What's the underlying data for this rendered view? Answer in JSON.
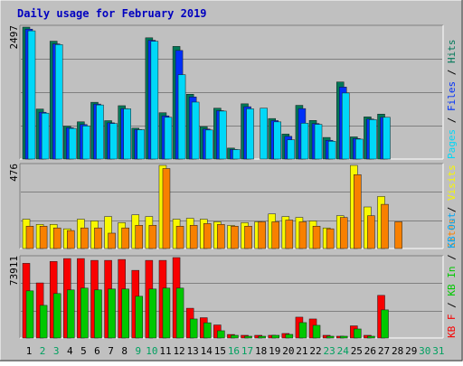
{
  "title": "Daily usage for February 2019",
  "colors": {
    "background": "#c0c0c0",
    "title": "#0000c0",
    "grid": "#808080",
    "hits": "#007858",
    "files": "#0030f8",
    "pages": "#00d8f8",
    "visits": "#f8f800",
    "sites": "#f88000",
    "kb_f": "#f80000",
    "kb_in": "#00c800",
    "kb_out": "#00a8f8",
    "weekend_day": "#00a060",
    "weekday_day": "#000000"
  },
  "chart_data": [
    {
      "type": "bar",
      "panel": "top",
      "ymax_label": "2497",
      "ylim": [
        0,
        2497
      ],
      "categories": [
        "1",
        "2",
        "3",
        "4",
        "5",
        "6",
        "7",
        "8",
        "9",
        "10",
        "11",
        "12",
        "13",
        "14",
        "15",
        "16",
        "17",
        "18",
        "19",
        "20",
        "21",
        "22",
        "23",
        "24",
        "25",
        "26",
        "27",
        "28",
        "29",
        "30",
        "31"
      ],
      "legend": [
        "Pages",
        "Files",
        "Hits"
      ],
      "series": [
        {
          "name": "Hits",
          "values": [
            2497,
            947,
            2231,
            623,
            705,
            1075,
            727,
            1010,
            585,
            2295,
            877,
            2132,
            1227,
            614,
            963,
            208,
            1046,
            0,
            767,
            473,
            1017,
            731,
            409,
            1459,
            420,
            799,
            851,
            0,
            0,
            0,
            0
          ]
        },
        {
          "name": "Files",
          "values": [
            2459,
            886,
            2180,
            592,
            653,
            1041,
            686,
            955,
            560,
            2248,
            818,
            2055,
            1176,
            568,
            916,
            184,
            991,
            0,
            728,
            430,
            955,
            673,
            355,
            1363,
            388,
            757,
            790,
            0,
            0,
            0,
            0
          ]
        },
        {
          "name": "Pages",
          "values": [
            2427,
            869,
            2166,
            580,
            626,
            1024,
            673,
            951,
            556,
            2229,
            790,
            1597,
            1078,
            550,
            908,
            180,
            951,
            963,
            704,
            365,
            678,
            657,
            337,
            1250,
            377,
            746,
            790,
            0,
            0,
            0,
            0
          ]
        }
      ]
    },
    {
      "type": "bar",
      "panel": "middle",
      "ymax_label": "476",
      "ylim": [
        0,
        476
      ],
      "categories": [
        "1",
        "2",
        "3",
        "4",
        "5",
        "6",
        "7",
        "8",
        "9",
        "10",
        "11",
        "12",
        "13",
        "14",
        "15",
        "16",
        "17",
        "18",
        "19",
        "20",
        "21",
        "22",
        "23",
        "24",
        "25",
        "26",
        "27",
        "28",
        "29",
        "30",
        "31"
      ],
      "legend": [
        "Visits",
        "Sites"
      ],
      "series": [
        {
          "name": "Visits",
          "values": [
            168,
            138,
            138,
            113,
            168,
            158,
            183,
            148,
            193,
            183,
            476,
            168,
            173,
            168,
            153,
            132,
            148,
            153,
            198,
            183,
            178,
            158,
            118,
            188,
            476,
            238,
            298,
            0,
            0,
            0,
            0
          ]
        },
        {
          "name": "Sites",
          "values": [
            128,
            128,
            118,
            103,
            118,
            118,
            88,
            118,
            133,
            133,
            458,
            128,
            133,
            143,
            138,
            128,
            128,
            153,
            153,
            163,
            153,
            128,
            113,
            178,
            423,
            188,
            253,
            153,
            0,
            0,
            0
          ]
        }
      ]
    },
    {
      "type": "bar",
      "panel": "bottom",
      "ymax_label": "73911",
      "ylim": [
        0,
        73911
      ],
      "categories": [
        "1",
        "2",
        "3",
        "4",
        "5",
        "6",
        "7",
        "8",
        "9",
        "10",
        "11",
        "12",
        "13",
        "14",
        "15",
        "16",
        "17",
        "18",
        "19",
        "20",
        "21",
        "22",
        "23",
        "24",
        "25",
        "26",
        "27",
        "28",
        "29",
        "30",
        "31"
      ],
      "legend": [
        "KB F",
        "KB In",
        "KB Out"
      ],
      "series": [
        {
          "name": "KB F",
          "values": [
            68634,
            50619,
            70323,
            73005,
            73005,
            71333,
            71333,
            72172,
            62172,
            71333,
            71333,
            73911,
            27343,
            18657,
            11990,
            3253,
            2499,
            2499,
            2499,
            4166,
            19157,
            17490,
            2499,
            1666,
            11157,
            2499,
            39167,
            0,
            0,
            0,
            0
          ]
        },
        {
          "name": "KB In",
          "values": [
            43333,
            29990,
            40843,
            44176,
            45843,
            44176,
            45010,
            45010,
            38343,
            45010,
            45843,
            45843,
            17490,
            13990,
            6657,
            2499,
            1666,
            1666,
            2499,
            3333,
            14157,
            11657,
            1666,
            1666,
            8324,
            1666,
            25843,
            0,
            0,
            0,
            0
          ]
        },
        {
          "name": "KB Out",
          "values": [
            0,
            0,
            0,
            0,
            0,
            0,
            0,
            0,
            0,
            0,
            0,
            0,
            0,
            0,
            0,
            0,
            0,
            0,
            0,
            0,
            0,
            0,
            0,
            0,
            0,
            0,
            0,
            0,
            0,
            0,
            0
          ]
        }
      ]
    }
  ]
}
